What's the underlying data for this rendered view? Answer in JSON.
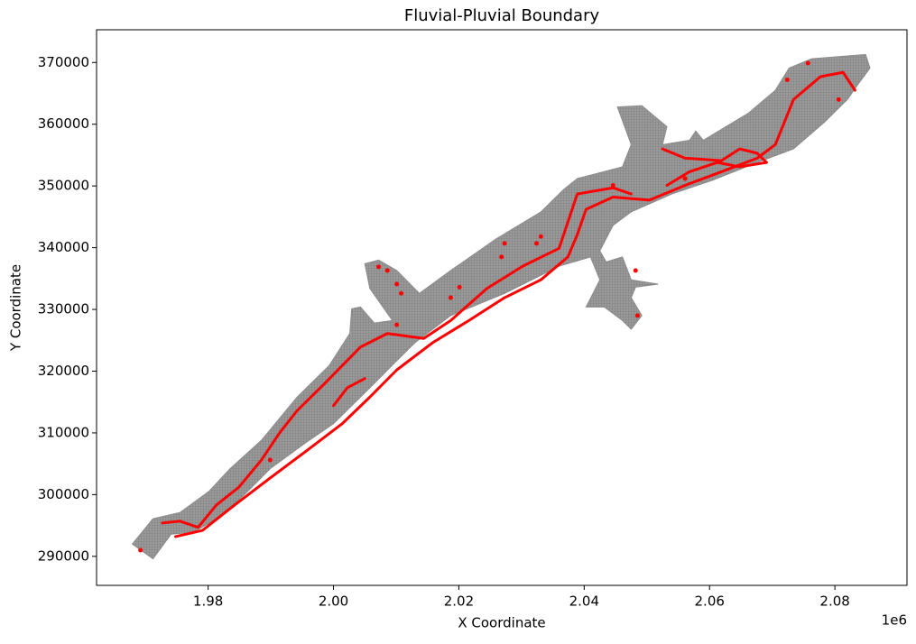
{
  "chart_data": {
    "type": "scatter",
    "title": "Fluvial-Pluvial Boundary",
    "x_label": "X Coordinate",
    "y_label": "Y Coordinate",
    "x_offset_text": "1e6",
    "xlim": [
      1962200,
      2091500
    ],
    "ylim": [
      285300,
      375300
    ],
    "xticks": [
      {
        "value": 1980000,
        "label": "1.98"
      },
      {
        "value": 2000000,
        "label": "2.00"
      },
      {
        "value": 2020000,
        "label": "2.02"
      },
      {
        "value": 2040000,
        "label": "2.04"
      },
      {
        "value": 2060000,
        "label": "2.06"
      },
      {
        "value": 2080000,
        "label": "2.08"
      }
    ],
    "yticks": [
      290000,
      300000,
      310000,
      320000,
      330000,
      340000,
      350000,
      360000,
      370000
    ],
    "series": [
      {
        "type": "area",
        "color": "#8c8c8c",
        "x": [
          1967900,
          1971200,
          1975500,
          1980100,
          1983500,
          1988500,
          1994200,
          1999300,
          2002600,
          2002900,
          2004300,
          2006500,
          2009400,
          2005800,
          2005000,
          2007200,
          2010100,
          2013700,
          2018700,
          2025900,
          2033100,
          2036700,
          2038900,
          2046100,
          2047500,
          2045300,
          2049200,
          2053200,
          2052500,
          2056800,
          2057800,
          2059000,
          2066200,
          2070500,
          2072700,
          2076300,
          2084900,
          2085600,
          2083500,
          2082000,
          2078400,
          2073400,
          2067600,
          2060400,
          2054000,
          2047500,
          2044600,
          2042500,
          2043500,
          2046100,
          2047500,
          2051800,
          2048200,
          2047500,
          2049200,
          2047500,
          2046100,
          2043200,
          2040300,
          2042500,
          2041000,
          2036000,
          2027300,
          2018700,
          2013000,
          2010100,
          2005800,
          2000000,
          1995700,
          1989900,
          1985600,
          1981300,
          1977700,
          1974100,
          1971200
        ],
        "y": [
          292000,
          296100,
          297100,
          300500,
          304200,
          308800,
          315800,
          320900,
          326100,
          330100,
          330400,
          327800,
          328200,
          333400,
          337400,
          338000,
          336300,
          332600,
          336300,
          341400,
          345800,
          349400,
          351200,
          353100,
          356700,
          362800,
          363000,
          359600,
          356700,
          357400,
          358900,
          357400,
          361800,
          365500,
          369100,
          370600,
          371300,
          369100,
          366200,
          364000,
          360400,
          356000,
          353800,
          350900,
          348700,
          345800,
          343600,
          339500,
          337700,
          338500,
          334800,
          334100,
          333600,
          331900,
          329000,
          326800,
          328200,
          330400,
          330400,
          334800,
          338500,
          337000,
          332600,
          329000,
          324600,
          321700,
          317300,
          311500,
          308500,
          304200,
          299800,
          296100,
          293900,
          293600,
          289600
        ]
      },
      {
        "type": "line",
        "color": "#ff0000",
        "x": [
          1974800,
          1979100,
          1984200,
          1989900,
          1995700,
          2001400,
          2005800,
          2010100,
          2015800,
          2021600,
          2027300,
          2033100,
          2037400,
          2038900,
          2040300,
          2044600,
          2050400,
          2056100,
          2061900,
          2067600,
          2070500,
          2073400,
          2077700,
          2081300,
          2083200,
          null,
          1972700,
          1975500,
          1978400,
          1981300,
          1984900,
          1988500,
          1991400,
          1994200,
          1998600,
          2001400,
          2004300,
          2008600,
          2014400,
          2018700,
          2024500,
          2030200,
          2036000,
          2038900,
          2044600,
          2047500,
          null,
          2052500,
          2056100,
          2061900,
          2064800,
          2067600,
          2069100,
          2064800,
          2061200,
          2056800,
          2053200,
          null,
          2000000,
          2002200,
          2005000
        ],
        "y": [
          293200,
          294200,
          298300,
          302700,
          307100,
          311500,
          315800,
          320200,
          324600,
          328200,
          331900,
          334800,
          338500,
          342100,
          346200,
          348200,
          347700,
          350100,
          352300,
          354500,
          356700,
          364000,
          367700,
          368400,
          365500,
          null,
          295400,
          295700,
          294700,
          298300,
          301200,
          305600,
          310000,
          313600,
          318000,
          320900,
          323900,
          326100,
          325300,
          328200,
          333400,
          337000,
          339900,
          348700,
          349700,
          348700,
          null,
          356000,
          354500,
          354100,
          356000,
          355300,
          353800,
          353100,
          353800,
          352300,
          350100,
          null,
          314400,
          317300,
          318800
        ]
      },
      {
        "type": "scatter",
        "color": "#ff0000",
        "x": [
          2008600,
          2010100,
          2010800,
          2007200,
          2018700,
          2020100,
          2027300,
          2033100,
          2032400,
          2026800,
          2044600,
          2048200,
          2048500,
          2056100,
          2072400,
          2080600,
          2075700,
          2010100,
          1989900,
          1969200
        ],
        "y": [
          336300,
          334100,
          332600,
          336900,
          331900,
          333600,
          340700,
          341800,
          340700,
          338500,
          350100,
          336300,
          329000,
          351200,
          367200,
          364000,
          369900,
          327500,
          305600,
          291000
        ]
      }
    ]
  }
}
